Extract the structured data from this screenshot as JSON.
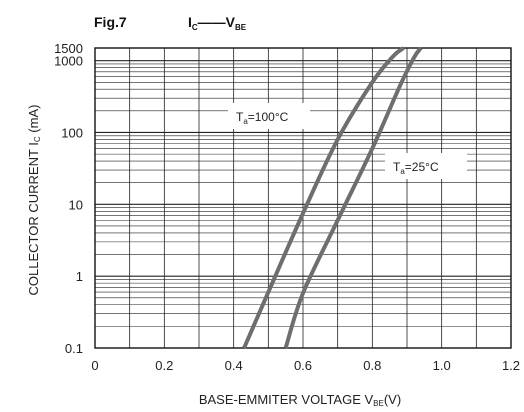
{
  "chart_data": {
    "type": "line",
    "figure_label": "Fig.7",
    "title": {
      "main1": "I",
      "sub1": "C",
      "dash": "——",
      "main2": "V",
      "sub2": "BE"
    },
    "xlabel": {
      "pre": "BASE-EMMITER VOLTAGE V",
      "sub": "BE",
      "post": "(V)"
    },
    "ylabel": {
      "pre": "COLLECTOR CURRENT I",
      "sub": "C",
      "post": " (mA)"
    },
    "x_scale": "linear",
    "y_scale": "log",
    "xlim": [
      0,
      1.2
    ],
    "ylim": [
      0.1,
      1500
    ],
    "x_ticks": [
      "0",
      "0.2",
      "0.4",
      "0.6",
      "0.8",
      "1.0",
      "1.2"
    ],
    "y_ticks": [
      "0.1",
      "1",
      "10",
      "100",
      "1000",
      "1500"
    ],
    "grid": true,
    "line_color": "#6e6e6e",
    "series": [
      {
        "name": "Ta=100°C",
        "label": {
          "pre": "T",
          "sub": "a",
          "post": "=100°C"
        },
        "x": [
          0.43,
          0.5,
          0.6,
          0.7,
          0.8,
          0.86,
          0.89
        ],
        "y": [
          0.1,
          0.6,
          7.5,
          80,
          500,
          1150,
          1500
        ]
      },
      {
        "name": "Ta=25°C",
        "label": {
          "pre": "T",
          "sub": "a",
          "post": "=25°C"
        },
        "x": [
          0.55,
          0.6,
          0.7,
          0.8,
          0.88,
          0.92,
          0.94
        ],
        "y": [
          0.1,
          0.58,
          6,
          60,
          450,
          1100,
          1500
        ]
      }
    ]
  }
}
